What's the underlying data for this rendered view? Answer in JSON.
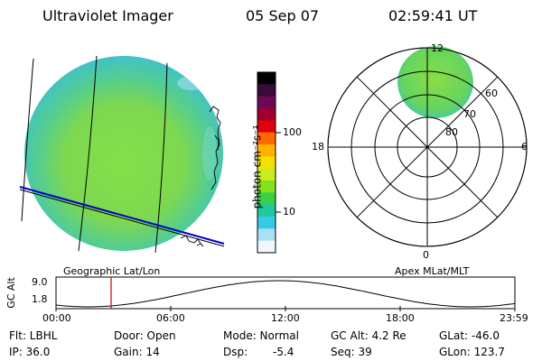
{
  "header": {
    "title": "Ultraviolet Imager",
    "date": "05 Sep 07",
    "time": "02:59:41 UT"
  },
  "left_panel": {
    "caption": "Geographic Lat/Lon"
  },
  "right_panel": {
    "caption": "Apex MLat/MLT",
    "mlt_labels": [
      "12",
      "18",
      "6",
      "0"
    ],
    "mlat_labels": [
      "60",
      "70",
      "80"
    ]
  },
  "colorbar": {
    "label": "photon cm⁻²s⁻¹",
    "ticks": [
      "100",
      "10"
    ],
    "colors": [
      "#000000",
      "#3a0a3c",
      "#6a0a55",
      "#a00030",
      "#e00010",
      "#ff6a00",
      "#ffb000",
      "#f2e000",
      "#c8ec20",
      "#84e020",
      "#38d048",
      "#20c8a0",
      "#38c8e8",
      "#a8e0f4",
      "#f0f8fc"
    ]
  },
  "altitude_plot": {
    "ylabel": "GC Alt",
    "yticks": [
      "9.0",
      "1.8"
    ],
    "xticks": [
      "00:00",
      "06:00",
      "12:00",
      "18:00",
      "23:59"
    ],
    "current_time_color": "#cc0000"
  },
  "footer": {
    "flt": "Flt: LBHL",
    "door": "Door: Open",
    "mode": "Mode: Normal",
    "gc_alt": "GC Alt: 4.2 Re",
    "glat": "GLat: -46.0",
    "ip": "IP: 36.0",
    "gain": "Gain: 14",
    "dsp_label": "Dsp:",
    "dsp_value": "-5.4",
    "seq": "Seq: 39",
    "glon": "GLon: 123.7"
  }
}
